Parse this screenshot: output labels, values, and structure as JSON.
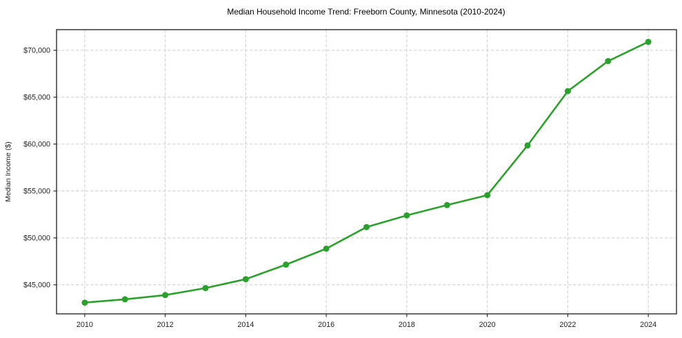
{
  "figure": {
    "background": "#ffffff"
  },
  "chart_data": {
    "type": "line",
    "title": "Median Household Income Trend: Freeborn County, Minnesota (2010-2024)",
    "xlabel": "",
    "ylabel": "Median Income ($)",
    "x": [
      2010,
      2011,
      2012,
      2013,
      2014,
      2015,
      2016,
      2017,
      2018,
      2019,
      2020,
      2021,
      2022,
      2023,
      2024
    ],
    "series": [
      {
        "name": "Median Household Income",
        "color": "#2ca02c",
        "values": [
          43100,
          43450,
          43900,
          44650,
          45600,
          47150,
          48850,
          51150,
          52400,
          53500,
          54550,
          59850,
          65650,
          68850,
          70900
        ]
      }
    ],
    "xticks": [
      2010,
      2012,
      2014,
      2016,
      2018,
      2020,
      2022,
      2024
    ],
    "xtick_labels": [
      "2010",
      "2012",
      "2014",
      "2016",
      "2018",
      "2020",
      "2022",
      "2024"
    ],
    "yticks": [
      45000,
      50000,
      55000,
      60000,
      65000,
      70000
    ],
    "ytick_labels": [
      "$45,000",
      "$50,000",
      "$55,000",
      "$60,000",
      "$65,000",
      "$70,000"
    ],
    "xlim": [
      2009.3,
      2024.7
    ],
    "ylim": [
      41900,
      72200
    ],
    "grid": true,
    "legend_position": "none",
    "marker": "circle",
    "marker_radius": 4.5
  },
  "style": {
    "line_color": "#2ca02c",
    "grid_color": "#cfcfcf",
    "spine_color": "#1a1a1a",
    "text_color": "#1f1f1f"
  }
}
